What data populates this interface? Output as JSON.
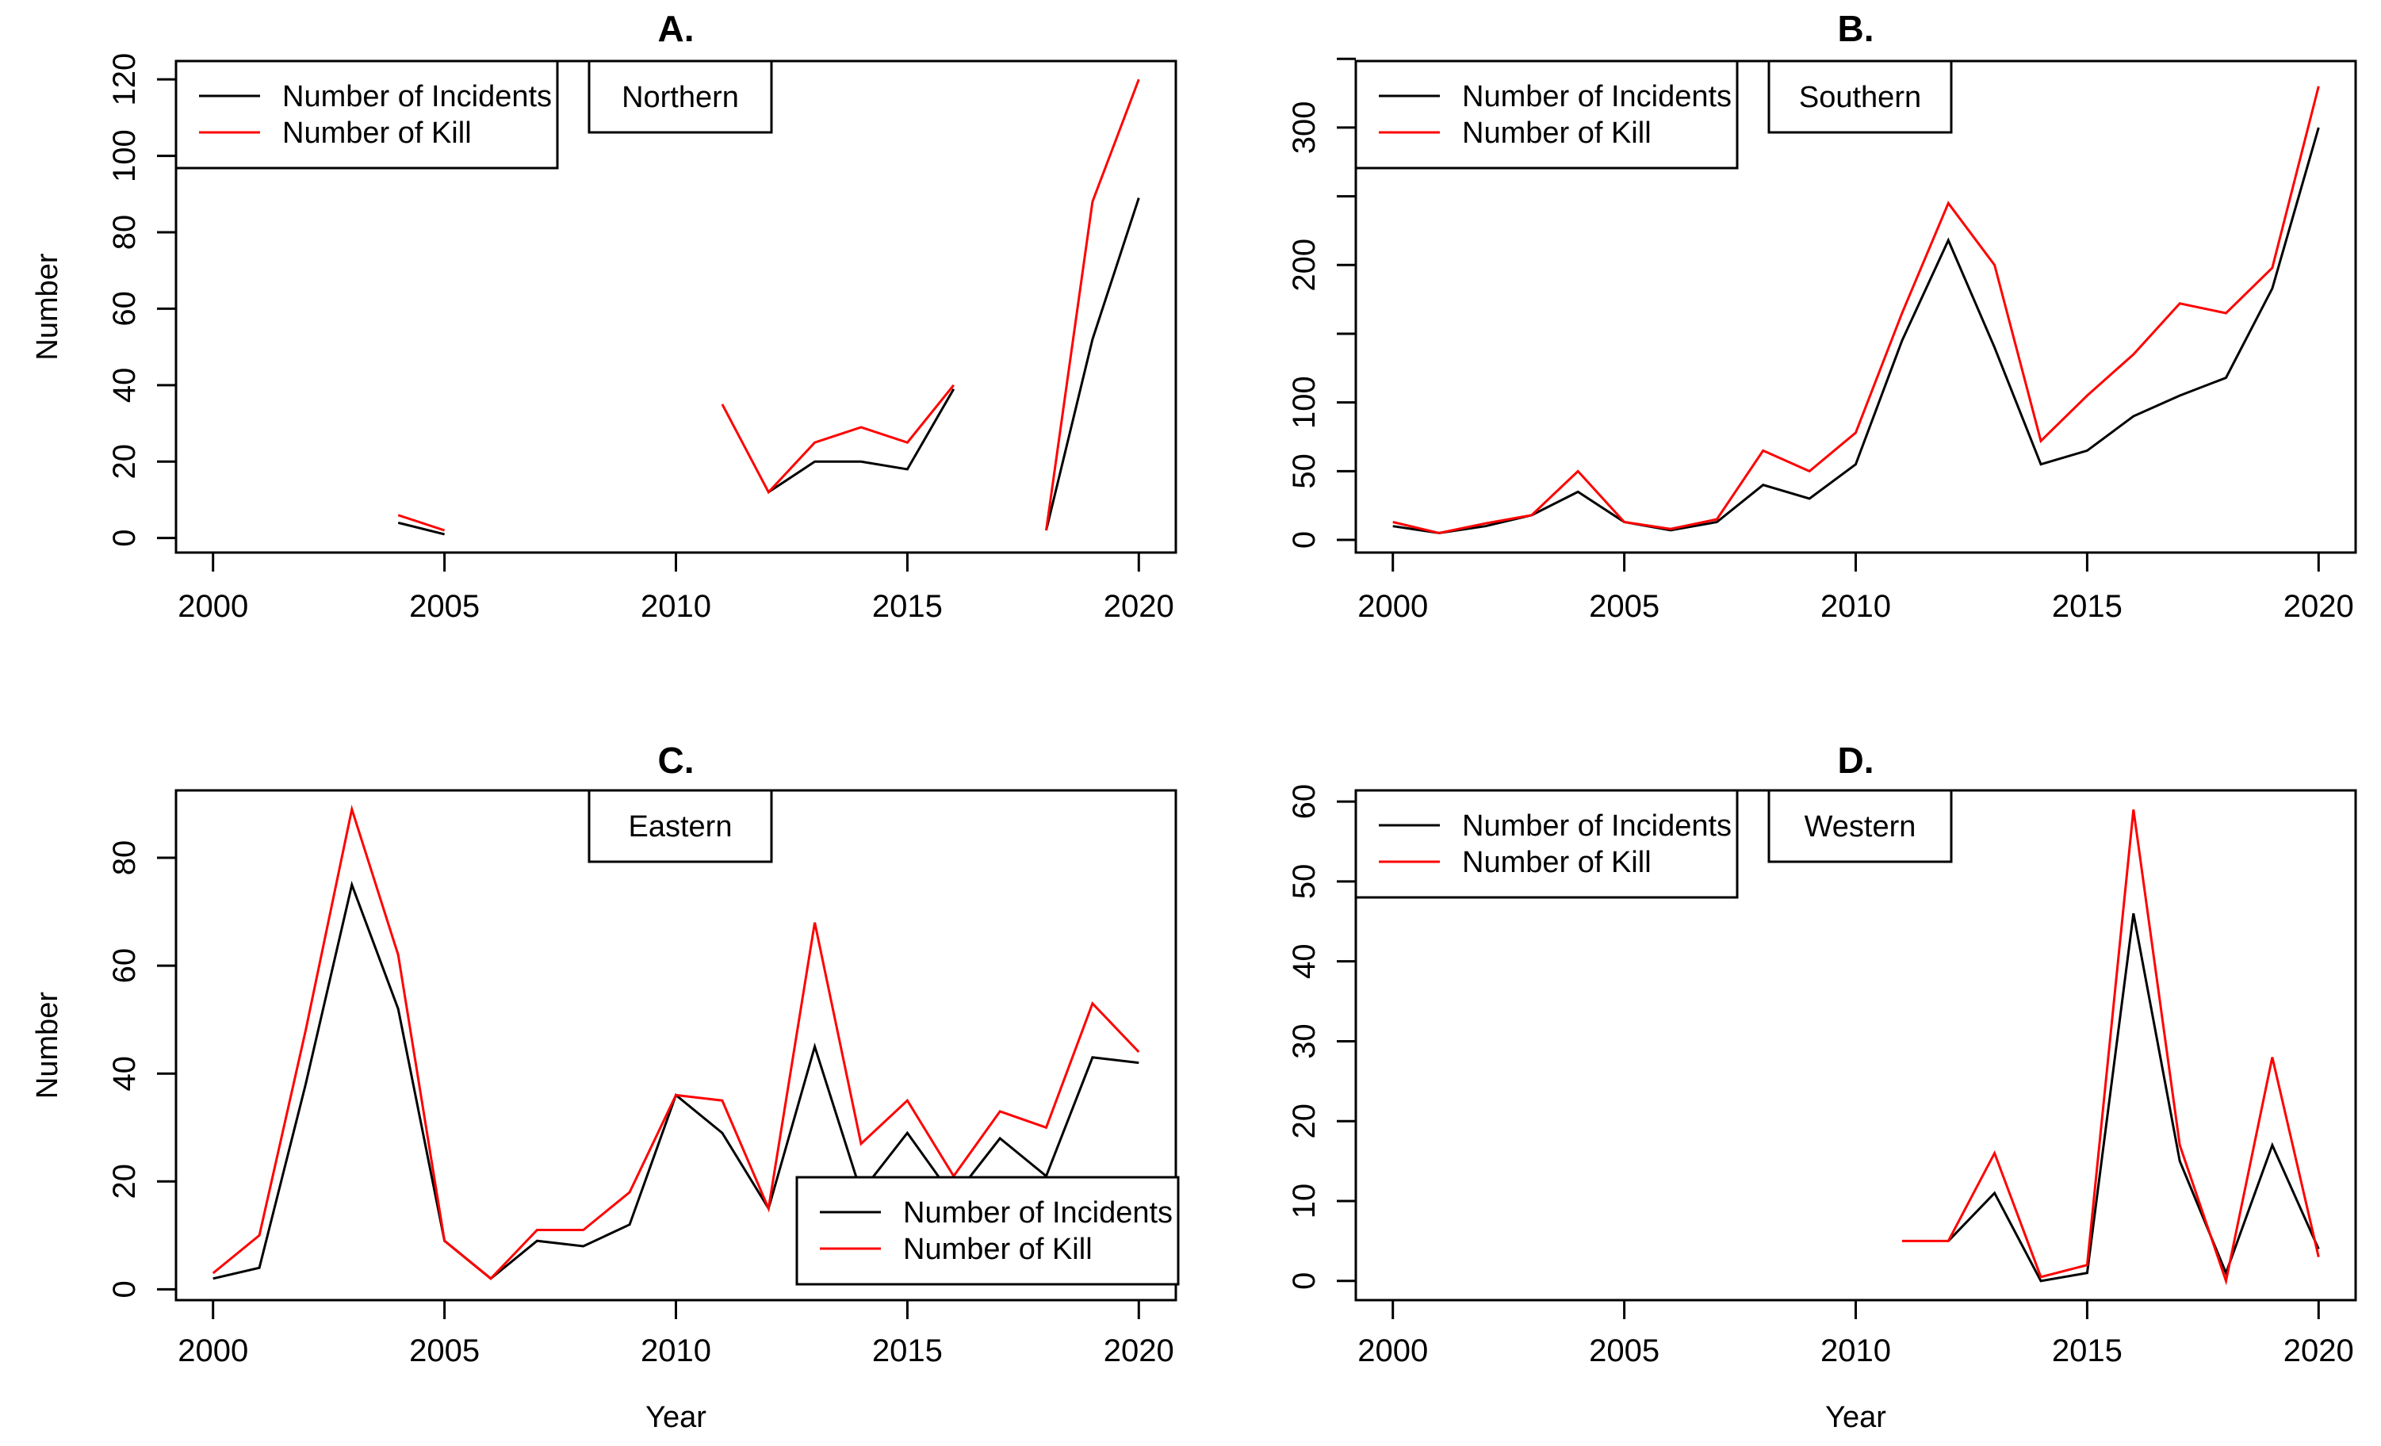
{
  "figure": {
    "background": "#ffffff",
    "text_color": "#000000",
    "y_axis_title": "Number",
    "x_axis_title": "Year",
    "legend": {
      "incidents_label": "Number of Incidents",
      "kill_label": "Number of Kill"
    },
    "colors": {
      "incidents": "#000000",
      "kill": "#ff0000"
    }
  },
  "chart_data": [
    {
      "type": "line",
      "panel_label": "A.",
      "region": "Northern",
      "legend_position": "topleft",
      "show_y_title": true,
      "show_x_title": false,
      "x": [
        2000,
        2001,
        2002,
        2003,
        2004,
        2005,
        2006,
        2007,
        2008,
        2009,
        2010,
        2011,
        2012,
        2013,
        2014,
        2015,
        2016,
        2017,
        2018,
        2019,
        2020
      ],
      "xlim": [
        1999.2,
        2020.8
      ],
      "ylim": [
        -3.8,
        124.8
      ],
      "xticks": [
        2000,
        2005,
        2010,
        2015,
        2020
      ],
      "ytick_values": [
        0,
        20,
        40,
        60,
        80,
        100,
        120
      ],
      "ytick_labels": [
        "0",
        "20",
        "40",
        "60",
        "80",
        "100",
        "120"
      ],
      "series": [
        {
          "name": "Number of Incidents",
          "color": "#000000",
          "values": [
            null,
            null,
            null,
            null,
            4,
            1,
            null,
            null,
            null,
            null,
            null,
            null,
            12,
            20,
            20,
            18,
            39,
            null,
            2,
            52,
            89
          ]
        },
        {
          "name": "Number of Kill",
          "color": "#ff0000",
          "values": [
            null,
            null,
            null,
            null,
            6,
            2,
            null,
            null,
            null,
            null,
            null,
            35,
            12,
            25,
            29,
            25,
            40,
            null,
            2,
            88,
            120
          ]
        }
      ]
    },
    {
      "type": "line",
      "panel_label": "B.",
      "region": "Southern",
      "legend_position": "topleft",
      "show_y_title": false,
      "show_x_title": false,
      "x": [
        2000,
        2001,
        2002,
        2003,
        2004,
        2005,
        2006,
        2007,
        2008,
        2009,
        2010,
        2011,
        2012,
        2013,
        2014,
        2015,
        2016,
        2017,
        2018,
        2019,
        2020
      ],
      "xlim": [
        1999.2,
        2020.8
      ],
      "ylim": [
        -9.2,
        348.4
      ],
      "xticks": [
        2000,
        2005,
        2010,
        2015,
        2020
      ],
      "ytick_values": [
        0,
        50,
        100,
        150,
        200,
        250,
        300,
        350
      ],
      "ytick_labels": [
        "0",
        "50",
        "100",
        "",
        "200",
        "",
        "300",
        ""
      ],
      "series": [
        {
          "name": "Number of Incidents",
          "color": "#000000",
          "values": [
            10,
            5,
            10,
            18,
            35,
            13,
            7,
            13,
            40,
            30,
            55,
            145,
            218,
            140,
            55,
            65,
            90,
            105,
            118,
            183,
            300
          ]
        },
        {
          "name": "Number of Kill",
          "color": "#ff0000",
          "values": [
            13,
            5,
            12,
            18,
            50,
            13,
            8,
            15,
            65,
            50,
            78,
            165,
            245,
            200,
            72,
            105,
            135,
            172,
            165,
            198,
            330
          ]
        }
      ]
    },
    {
      "type": "line",
      "panel_label": "C.",
      "region": "Eastern",
      "legend_position": "bottomright",
      "show_y_title": true,
      "show_x_title": true,
      "x": [
        2000,
        2001,
        2002,
        2003,
        2004,
        2005,
        2006,
        2007,
        2008,
        2009,
        2010,
        2011,
        2012,
        2013,
        2014,
        2015,
        2016,
        2017,
        2018,
        2019,
        2020
      ],
      "xlim": [
        1999.2,
        2020.8
      ],
      "ylim": [
        -2,
        92.5
      ],
      "xticks": [
        2000,
        2005,
        2010,
        2015,
        2020
      ],
      "ytick_values": [
        0,
        20,
        40,
        60,
        80
      ],
      "ytick_labels": [
        "0",
        "20",
        "40",
        "60",
        "80"
      ],
      "series": [
        {
          "name": "Number of Incidents",
          "color": "#000000",
          "values": [
            2,
            4,
            38,
            75,
            52,
            9,
            2,
            9,
            8,
            12,
            36,
            29,
            15,
            45,
            18,
            29,
            17,
            28,
            21,
            43,
            42
          ]
        },
        {
          "name": "Number of Kill",
          "color": "#ff0000",
          "values": [
            3,
            10,
            48,
            89,
            62,
            9,
            2,
            11,
            11,
            18,
            36,
            35,
            15,
            68,
            27,
            35,
            21,
            33,
            30,
            53,
            44
          ]
        }
      ]
    },
    {
      "type": "line",
      "panel_label": "D.",
      "region": "Western",
      "legend_position": "topleft",
      "show_y_title": false,
      "show_x_title": true,
      "x": [
        2000,
        2001,
        2002,
        2003,
        2004,
        2005,
        2006,
        2007,
        2008,
        2009,
        2010,
        2011,
        2012,
        2013,
        2014,
        2015,
        2016,
        2017,
        2018,
        2019,
        2020
      ],
      "xlim": [
        1999.2,
        2020.8
      ],
      "ylim": [
        -2.4,
        61.4
      ],
      "xticks": [
        2000,
        2005,
        2010,
        2015,
        2020
      ],
      "ytick_values": [
        0,
        10,
        20,
        30,
        40,
        50,
        60
      ],
      "ytick_labels": [
        "0",
        "10",
        "20",
        "30",
        "40",
        "50",
        "60"
      ],
      "series": [
        {
          "name": "Number of Incidents",
          "color": "#000000",
          "values": [
            null,
            null,
            null,
            null,
            null,
            null,
            null,
            null,
            null,
            null,
            null,
            null,
            5,
            11,
            0,
            1,
            46,
            15,
            1,
            17,
            4
          ]
        },
        {
          "name": "Number of Kill",
          "color": "#ff0000",
          "values": [
            null,
            null,
            null,
            null,
            null,
            null,
            null,
            null,
            null,
            null,
            null,
            5,
            5,
            16,
            0.5,
            2,
            59,
            17,
            0,
            28,
            3
          ]
        }
      ]
    }
  ]
}
